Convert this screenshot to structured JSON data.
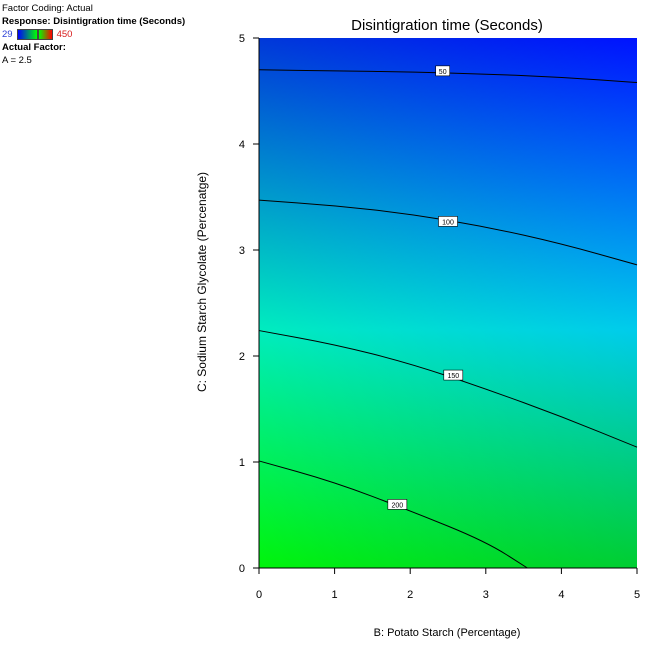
{
  "info": {
    "factor_coding": "Factor Coding: Actual",
    "response": "Response: Disintigration time (Seconds)",
    "range_low": "29",
    "range_high": "450",
    "actual_factor_heading": "Actual Factor:",
    "actual_factor_value": "A = 2.5"
  },
  "colors": {
    "low": "#0000ff",
    "mid": "#00ffff",
    "high": "#00ff00"
  },
  "chart_data": {
    "type": "contour",
    "title": "Disintigration time (Seconds)",
    "xlabel": "B: Potato Starch  (Percentage)",
    "ylabel": "C: Sodium Starch Glycolate (Percenatge)",
    "xlim": [
      0,
      5
    ],
    "ylim": [
      0,
      5
    ],
    "x_ticks": [
      "0",
      "1",
      "2",
      "3",
      "4",
      "5"
    ],
    "y_ticks": [
      "0",
      "1",
      "2",
      "3",
      "4",
      "5"
    ],
    "contours": [
      {
        "level": 50,
        "label": "50",
        "points": [
          [
            0,
            4.7
          ],
          [
            1,
            4.69
          ],
          [
            2,
            4.68
          ],
          [
            3,
            4.66
          ],
          [
            4,
            4.63
          ],
          [
            5,
            4.58
          ]
        ],
        "label_at": [
          2.43,
          4.69
        ]
      },
      {
        "level": 100,
        "label": "100",
        "points": [
          [
            0,
            3.47
          ],
          [
            1,
            3.42
          ],
          [
            2,
            3.34
          ],
          [
            3,
            3.22
          ],
          [
            4,
            3.06
          ],
          [
            5,
            2.86
          ]
        ],
        "label_at": [
          2.5,
          3.27
        ]
      },
      {
        "level": 150,
        "label": "150",
        "points": [
          [
            0,
            2.24
          ],
          [
            1,
            2.11
          ],
          [
            2,
            1.93
          ],
          [
            3,
            1.69
          ],
          [
            4,
            1.43
          ],
          [
            5,
            1.14
          ]
        ],
        "label_at": [
          2.57,
          1.82
        ]
      },
      {
        "level": 200,
        "label": "200",
        "points": [
          [
            0,
            1.01
          ],
          [
            1,
            0.81
          ],
          [
            2,
            0.54
          ],
          [
            3,
            0.25
          ],
          [
            3.55,
            0
          ]
        ],
        "label_at": [
          1.83,
          0.6
        ]
      }
    ]
  }
}
